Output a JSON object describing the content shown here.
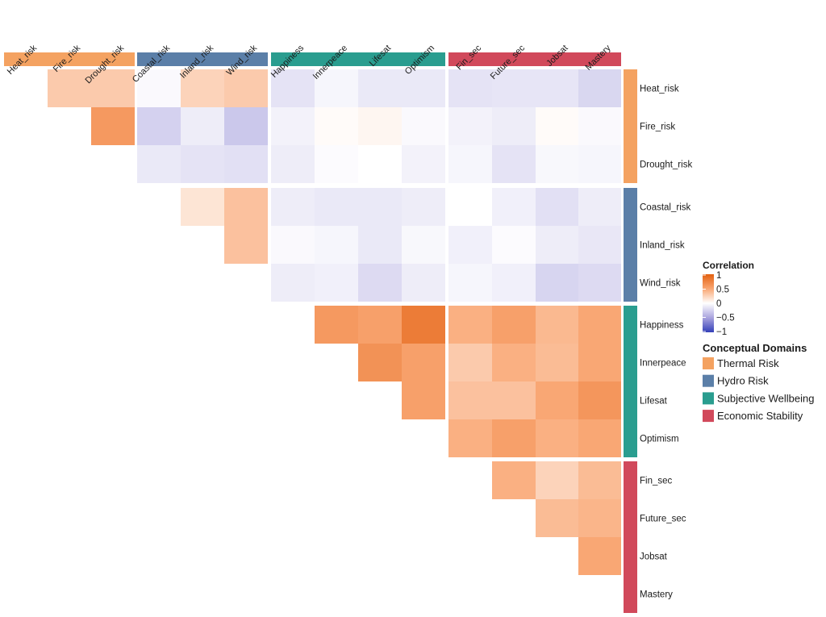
{
  "chart_data": {
    "type": "heatmap",
    "title": "",
    "variables": [
      "Heat_risk",
      "Fire_risk",
      "Drought_risk",
      "Coastal_risk",
      "Inland_risk",
      "Wind_risk",
      "Happiness",
      "Innerpeace",
      "Lifesat",
      "Optimism",
      "Fin_sec",
      "Future_sec",
      "Jobsat",
      "Mastery"
    ],
    "domains": [
      {
        "name": "Thermal Risk",
        "color": "#f4a261",
        "variables": [
          "Heat_risk",
          "Fire_risk",
          "Drought_risk"
        ]
      },
      {
        "name": "Hydro Risk",
        "color": "#5b7fa8",
        "variables": [
          "Coastal_risk",
          "Inland_risk",
          "Wind_risk"
        ]
      },
      {
        "name": "Subjective Wellbeing",
        "color": "#2a9d8f",
        "variables": [
          "Happiness",
          "Innerpeace",
          "Lifesat",
          "Optimism"
        ]
      },
      {
        "name": "Economic Stability",
        "color": "#d1495b",
        "variables": [
          "Fin_sec",
          "Future_sec",
          "Jobsat",
          "Mastery"
        ]
      }
    ],
    "triangle": "upper",
    "upper_triangle_values": [
      [
        0.3,
        0.3,
        -0.03,
        0.25,
        0.3,
        -0.15,
        -0.05,
        -0.12,
        -0.12,
        -0.15,
        -0.14,
        -0.14,
        -0.22
      ],
      [
        0.6,
        -0.25,
        -0.1,
        -0.3,
        -0.07,
        0.02,
        0.05,
        -0.03,
        -0.07,
        -0.1,
        0.02,
        -0.03
      ],
      [
        -0.12,
        -0.15,
        -0.17,
        -0.1,
        -0.02,
        0.0,
        -0.07,
        -0.05,
        -0.15,
        -0.04,
        -0.05
      ],
      [
        0.15,
        0.35,
        -0.1,
        -0.12,
        -0.12,
        -0.1,
        0.0,
        -0.08,
        -0.17,
        -0.1
      ],
      [
        0.35,
        -0.03,
        -0.05,
        -0.12,
        -0.04,
        -0.08,
        -0.02,
        -0.1,
        -0.13
      ],
      [
        -0.1,
        -0.08,
        -0.2,
        -0.1,
        -0.05,
        -0.08,
        -0.23,
        -0.2
      ],
      [
        0.6,
        0.55,
        0.8,
        0.45,
        0.55,
        0.4,
        0.5
      ],
      [
        0.65,
        0.55,
        0.3,
        0.45,
        0.38,
        0.5
      ],
      [
        0.55,
        0.35,
        0.35,
        0.5,
        0.62
      ],
      [
        0.45,
        0.55,
        0.45,
        0.5
      ],
      [
        0.45,
        0.25,
        0.38
      ],
      [
        0.38,
        0.42
      ],
      [
        0.5
      ],
      []
    ],
    "color_scale": {
      "title": "Correlation",
      "range": [
        -1,
        1
      ],
      "ticks": [
        "1",
        "0.5",
        "0",
        "−0.5",
        "−1"
      ],
      "high_color": "#e3600f",
      "mid_color": "#ffffff",
      "low_color": "#3340b8"
    },
    "domain_legend_title": "Conceptual Domains",
    "legend_placement": "right"
  }
}
